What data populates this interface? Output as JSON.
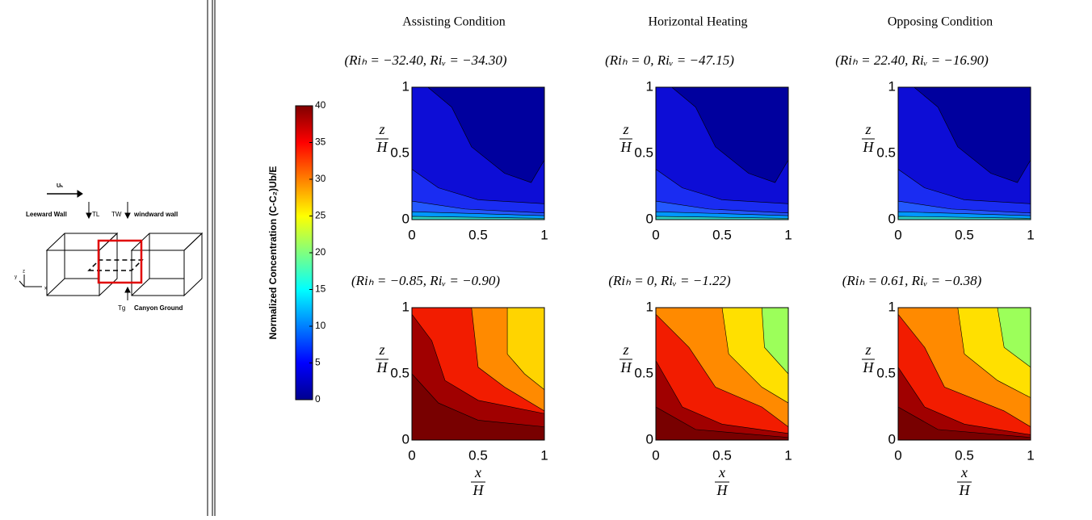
{
  "schematic": {
    "flow": "Uₕ",
    "leeward": "Leeward Wall",
    "t_leeward": "TL",
    "t_windward": "TW",
    "windward": "windward wall",
    "t_ground": "Tg",
    "ground": "Canyon Ground",
    "axes": [
      "z",
      "y",
      "x"
    ]
  },
  "colorbar": {
    "label": "Normalized Concentration (C-C₂)Ub/E",
    "ticks": [
      0,
      5,
      10,
      15,
      20,
      25,
      30,
      35,
      40
    ]
  },
  "columns": [
    "Assisting Condition",
    "Horizontal Heating",
    "Opposing Condition"
  ],
  "panels": [
    [
      {
        "label": "(Riₕ = −32.40, Riᵥ = −34.30)"
      },
      {
        "label": "(Riₕ = 0, Riᵥ = −47.15)"
      },
      {
        "label": "(Riₕ = 22.40, Riᵥ = −16.90)"
      }
    ],
    [
      {
        "label": "(Riₕ = −0.85, Riᵥ = −0.90)"
      },
      {
        "label": "(Riₕ = 0, Riᵥ = −1.22)"
      },
      {
        "label": "(Riₕ = 0.61, Riᵥ = −0.38)"
      }
    ]
  ],
  "axes": {
    "y_label_top": "z",
    "y_label_bottom": "H",
    "x_label_top": "x",
    "x_label_bottom": "H",
    "ticks": [
      "0",
      "0.5",
      "1"
    ]
  }
}
